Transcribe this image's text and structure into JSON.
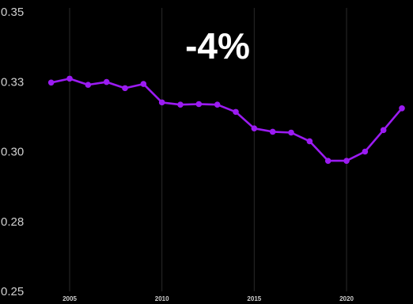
{
  "chart_data": {
    "type": "line",
    "title": "",
    "xlabel": "",
    "ylabel": "",
    "annotation": "-4%",
    "grid": "vertical",
    "xlim": [
      2003.8,
      2023.6
    ],
    "ylim": [
      0.25,
      0.35
    ],
    "x_ticks": [
      {
        "value": 2005,
        "label": "2005"
      },
      {
        "value": 2010,
        "label": "2010"
      },
      {
        "value": 2015,
        "label": "2015"
      },
      {
        "value": 2020,
        "label": "2020"
      }
    ],
    "y_ticks": [
      {
        "value": 0.35,
        "label": "0.35"
      },
      {
        "value": 0.325,
        "label": "0.33"
      },
      {
        "value": 0.3,
        "label": "0.30"
      },
      {
        "value": 0.275,
        "label": "0.28"
      },
      {
        "value": 0.25,
        "label": "0.25"
      }
    ],
    "colors": {
      "line": "#9b1bf2",
      "background": "#000000"
    },
    "series": [
      {
        "x": [
          2004,
          2005,
          2006,
          2007,
          2008,
          2009,
          2010,
          2011,
          2012,
          2013,
          2014,
          2015,
          2016,
          2017,
          2018,
          2019,
          2020,
          2021,
          2022,
          2023
        ],
        "y": [
          0.3247,
          0.3261,
          0.3239,
          0.3249,
          0.3227,
          0.3242,
          0.3176,
          0.3168,
          0.317,
          0.3168,
          0.3142,
          0.3083,
          0.3071,
          0.3068,
          0.3037,
          0.2967,
          0.2967,
          0.3,
          0.3077,
          0.3155
        ]
      }
    ]
  }
}
